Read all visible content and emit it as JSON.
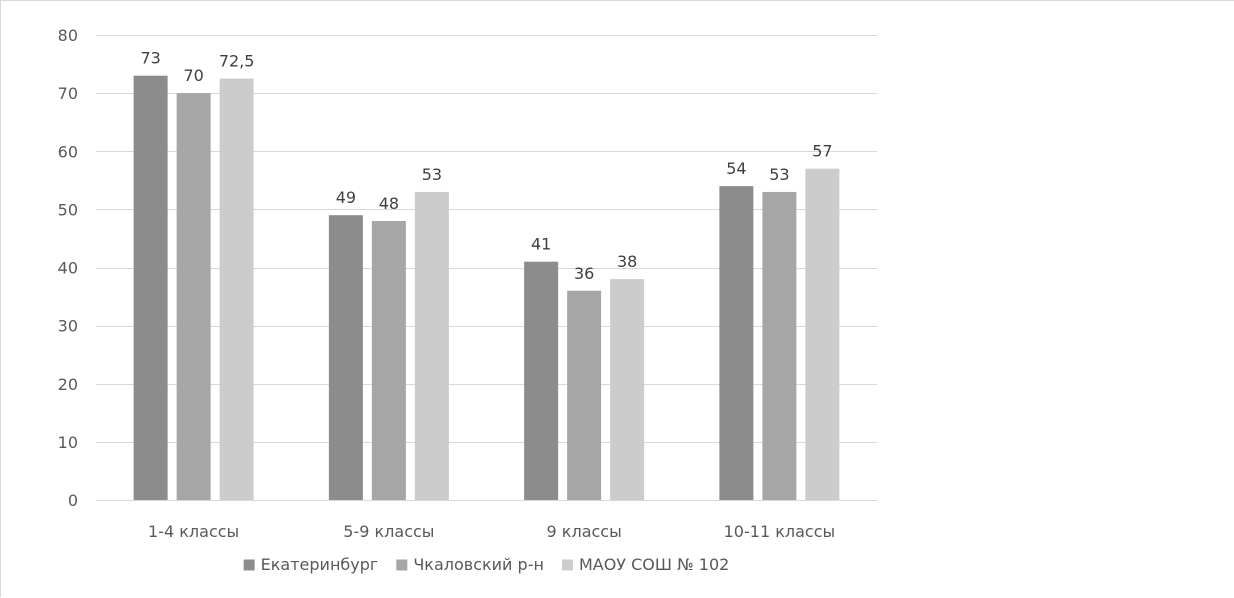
{
  "chart_data": {
    "type": "bar",
    "title": "",
    "xlabel": "",
    "ylabel": "",
    "categories": [
      "1-4 классы",
      "5-9 классы",
      "9 классы",
      "10-11 классы"
    ],
    "series": [
      {
        "name": "Екатеринбург",
        "color": "#8c8c8c",
        "values": [
          73,
          49,
          41,
          54
        ],
        "labels": [
          "73",
          "49",
          "41",
          "54"
        ]
      },
      {
        "name": "Чкаловский р-н",
        "color": "#a6a6a6",
        "values": [
          70,
          48,
          36,
          53
        ],
        "labels": [
          "70",
          "48",
          "36",
          "53"
        ]
      },
      {
        "name": "МАОУ СОШ № 102",
        "color": "#cccccc",
        "values": [
          72.5,
          53,
          38,
          57
        ],
        "labels": [
          "72,5",
          "53",
          "38",
          "57"
        ]
      }
    ],
    "ylim": [
      0,
      80
    ],
    "yticks": [
      0,
      10,
      20,
      30,
      40,
      50,
      60,
      70,
      80
    ],
    "grid": true,
    "legend": "bottom"
  }
}
